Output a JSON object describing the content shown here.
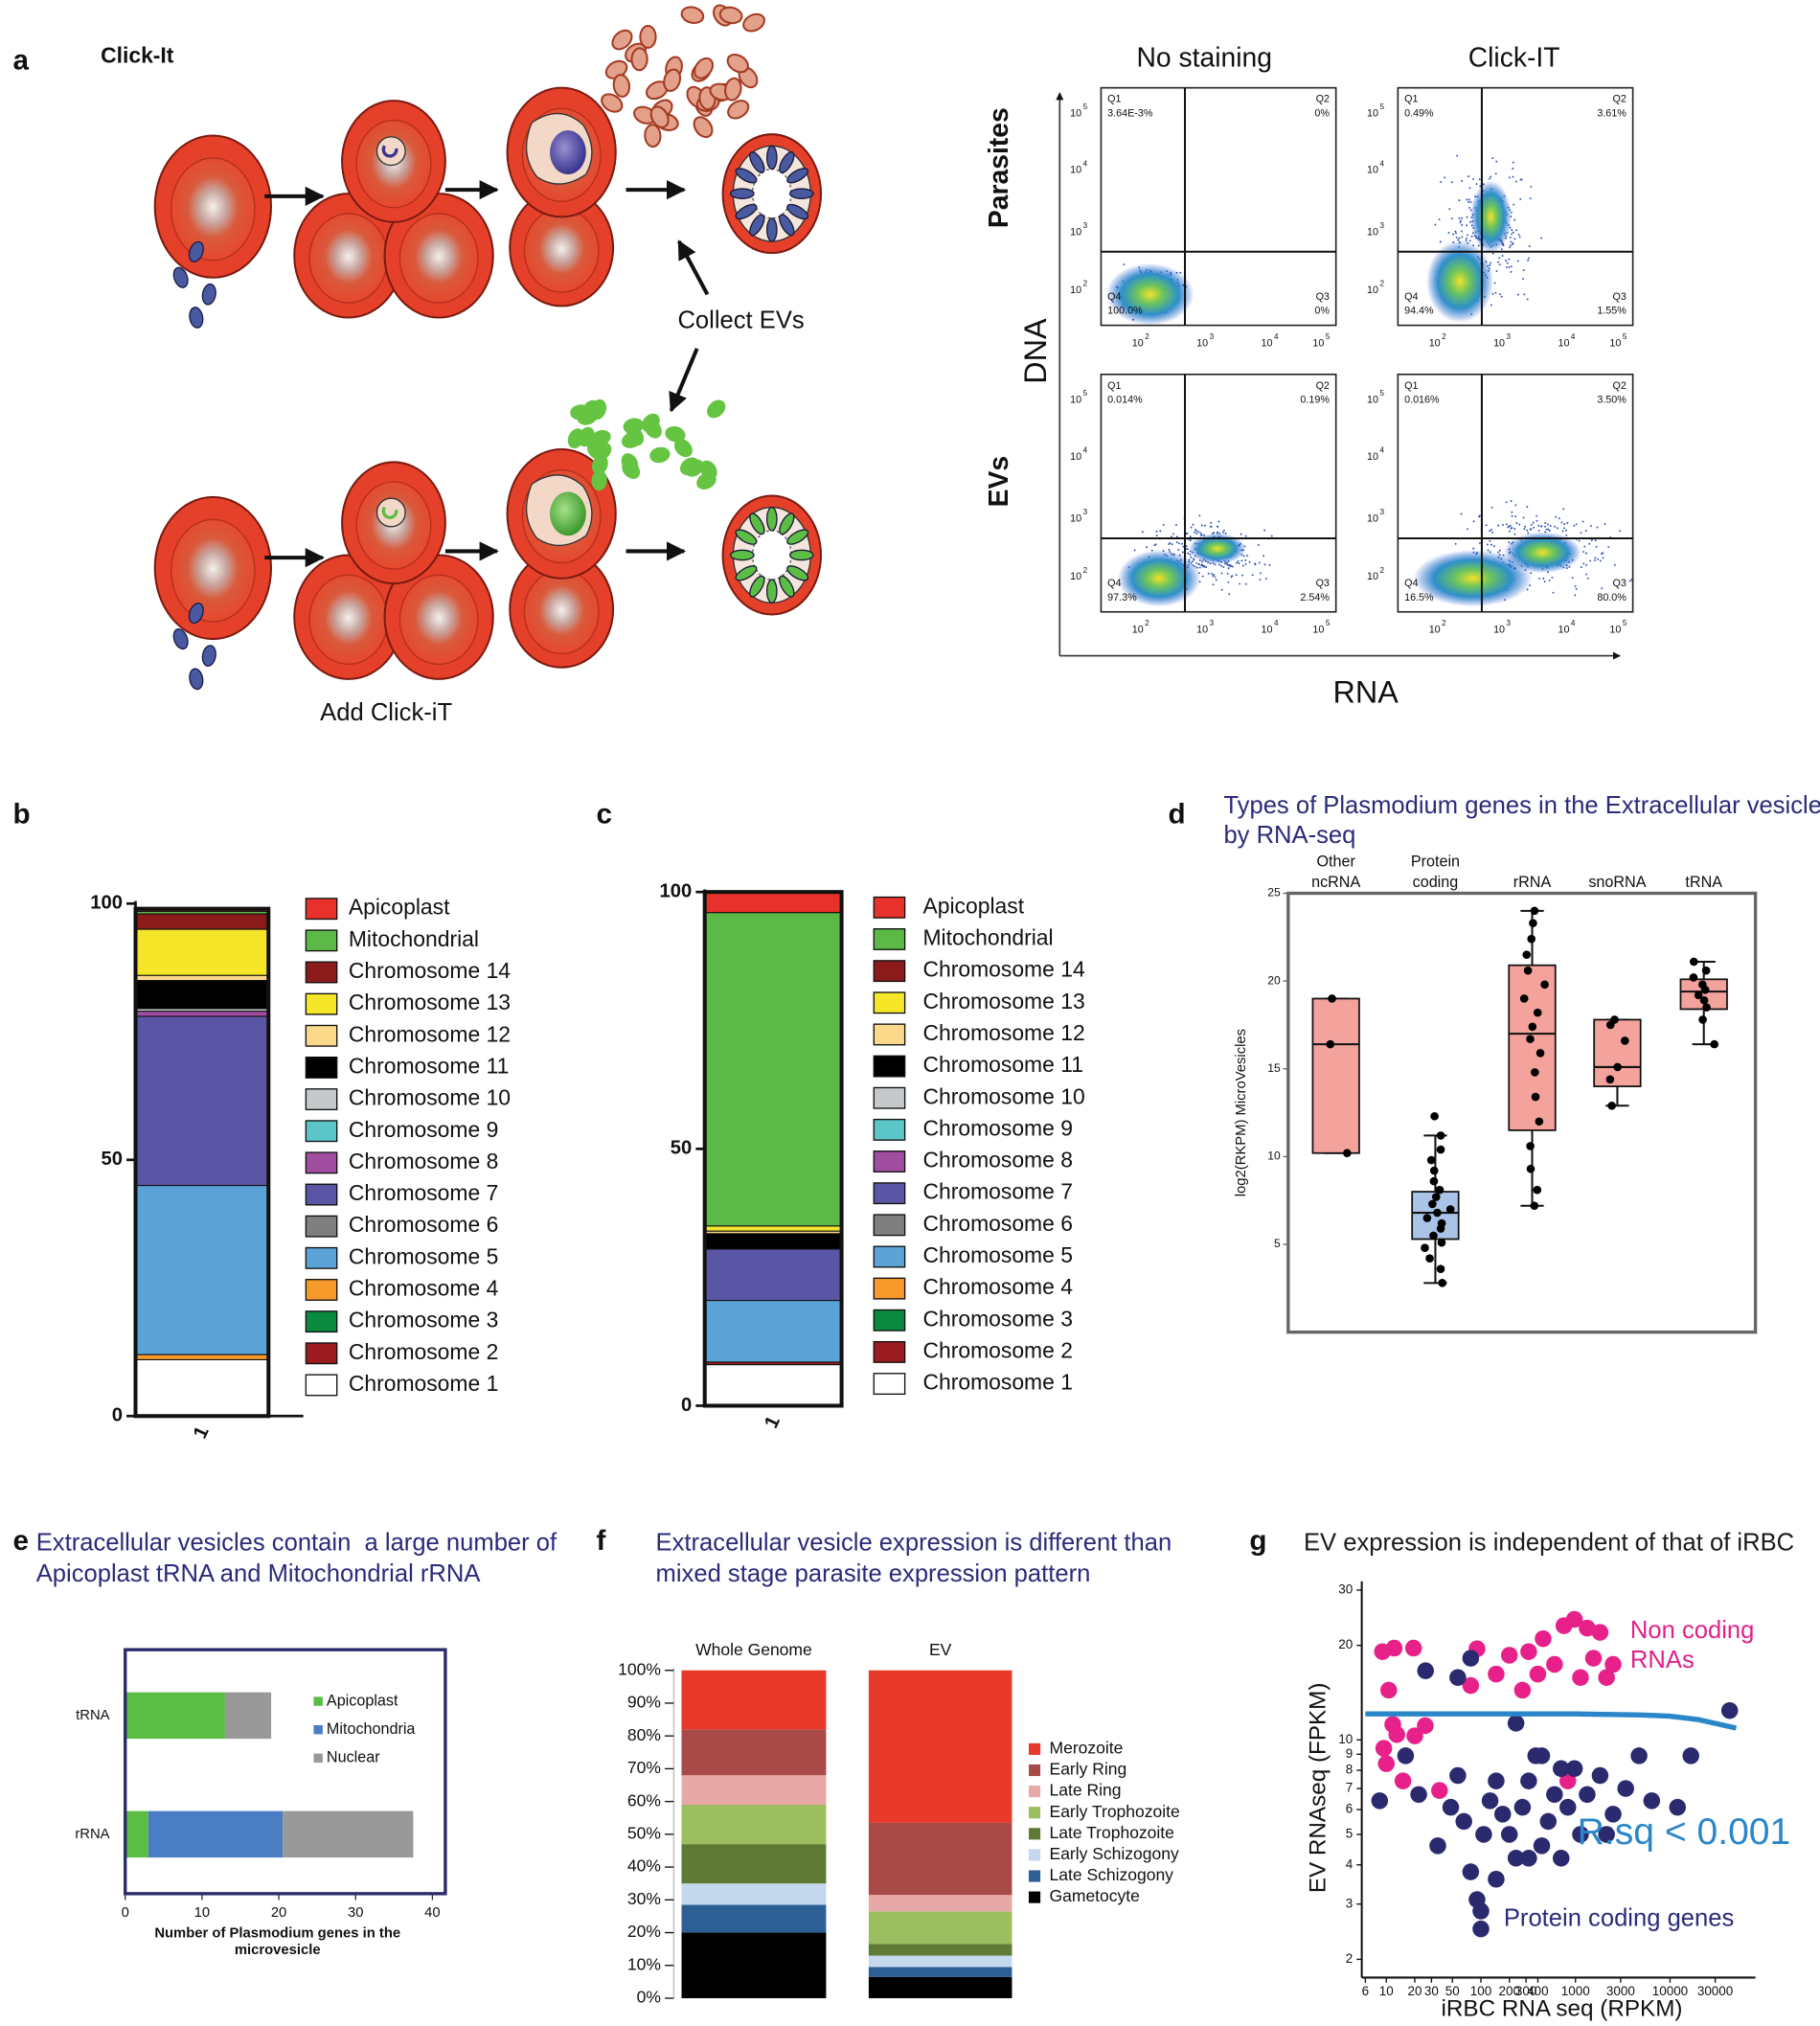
{
  "panel_a": {
    "label": "a",
    "title": "Click-It",
    "collect_label": "Collect EVs",
    "add_label": "Add Click-iT",
    "columns": [
      "No staining",
      "Click-IT"
    ],
    "rows": [
      "Parasites",
      "EVs"
    ],
    "y_axis": "DNA",
    "x_axis": "RNA",
    "tick_base": "10",
    "tick_exponents": [
      "2",
      "3",
      "4",
      "5"
    ],
    "plots": [
      {
        "quadrants": [
          {
            "name": "Q1",
            "value": "3.64E-3%"
          },
          {
            "name": "Q2",
            "value": "0%"
          },
          {
            "name": "Q3",
            "value": "0%"
          },
          {
            "name": "Q4",
            "value": "100.0%"
          }
        ]
      },
      {
        "quadrants": [
          {
            "name": "Q1",
            "value": "0.49%"
          },
          {
            "name": "Q2",
            "value": "3.61%"
          },
          {
            "name": "Q3",
            "value": "1.55%"
          },
          {
            "name": "Q4",
            "value": "94.4%"
          }
        ]
      },
      {
        "quadrants": [
          {
            "name": "Q1",
            "value": "0.014%"
          },
          {
            "name": "Q2",
            "value": "0.19%"
          },
          {
            "name": "Q3",
            "value": "2.54%"
          },
          {
            "name": "Q4",
            "value": "97.3%"
          }
        ]
      },
      {
        "quadrants": [
          {
            "name": "Q1",
            "value": "0.016%"
          },
          {
            "name": "Q2",
            "value": "3.50%"
          },
          {
            "name": "Q3",
            "value": "80.0%"
          },
          {
            "name": "Q4",
            "value": "16.5%"
          }
        ]
      }
    ]
  },
  "chart_data": [
    {
      "panel": "b",
      "type": "bar",
      "stacked": true,
      "outline": true,
      "categories": [
        "1"
      ],
      "ylim": [
        0,
        100
      ],
      "yticks": [
        0,
        50,
        100
      ],
      "series": [
        {
          "name": "Apicoplast",
          "color": "#e8312a",
          "values": [
            0.5
          ]
        },
        {
          "name": "Mitochondrial",
          "color": "#5cb947",
          "values": [
            0.5
          ]
        },
        {
          "name": "Chromosome 14",
          "color": "#8b1a1a",
          "values": [
            3
          ]
        },
        {
          "name": "Chromosome 13",
          "color": "#f5e62a",
          "values": [
            9
          ]
        },
        {
          "name": "Chromosome 12",
          "color": "#fcd98a",
          "values": [
            1
          ]
        },
        {
          "name": "Chromosome 11",
          "color": "#000000",
          "values": [
            5.5
          ]
        },
        {
          "name": "Chromosome 10",
          "color": "#c5c9cb",
          "values": [
            0.5
          ]
        },
        {
          "name": "Chromosome 9",
          "color": "#5cc5c8",
          "values": [
            0
          ]
        },
        {
          "name": "Chromosome 8",
          "color": "#a24ea0",
          "values": [
            1
          ]
        },
        {
          "name": "Chromosome 7",
          "color": "#5b55a6",
          "values": [
            33
          ]
        },
        {
          "name": "Chromosome 6",
          "color": "#7f7f7f",
          "values": [
            0
          ]
        },
        {
          "name": "Chromosome 5",
          "color": "#5ba3d6",
          "values": [
            33
          ]
        },
        {
          "name": "Chromosome 4",
          "color": "#f59a2b",
          "values": [
            1
          ]
        },
        {
          "name": "Chromosome 3",
          "color": "#0a8a3e",
          "values": [
            0
          ]
        },
        {
          "name": "Chromosome 2",
          "color": "#9b1b1f",
          "values": [
            0
          ]
        },
        {
          "name": "Chromosome 1",
          "color": "#ffffff",
          "values": [
            11
          ]
        }
      ]
    },
    {
      "panel": "c",
      "type": "bar",
      "stacked": true,
      "outline": true,
      "categories": [
        "1"
      ],
      "ylim": [
        0,
        100
      ],
      "yticks": [
        0,
        50,
        100
      ],
      "series": [
        {
          "name": "Apicoplast",
          "color": "#e8312a",
          "values": [
            4
          ]
        },
        {
          "name": "Mitochondrial",
          "color": "#5cb947",
          "values": [
            61
          ]
        },
        {
          "name": "Chromosome 14",
          "color": "#8b1a1a",
          "values": [
            0
          ]
        },
        {
          "name": "Chromosome 13",
          "color": "#f5e62a",
          "values": [
            1
          ]
        },
        {
          "name": "Chromosome 12",
          "color": "#fcd98a",
          "values": [
            0.5
          ]
        },
        {
          "name": "Chromosome 11",
          "color": "#000000",
          "values": [
            3
          ]
        },
        {
          "name": "Chromosome 10",
          "color": "#c5c9cb",
          "values": [
            0
          ]
        },
        {
          "name": "Chromosome 9",
          "color": "#5cc5c8",
          "values": [
            0
          ]
        },
        {
          "name": "Chromosome 8",
          "color": "#a24ea0",
          "values": [
            0
          ]
        },
        {
          "name": "Chromosome 7",
          "color": "#5b55a6",
          "values": [
            10
          ]
        },
        {
          "name": "Chromosome 6",
          "color": "#7f7f7f",
          "values": [
            0
          ]
        },
        {
          "name": "Chromosome 5",
          "color": "#5ba3d6",
          "values": [
            12
          ]
        },
        {
          "name": "Chromosome 4",
          "color": "#f59a2b",
          "values": [
            0
          ]
        },
        {
          "name": "Chromosome 3",
          "color": "#0a8a3e",
          "values": [
            0
          ]
        },
        {
          "name": "Chromosome 2",
          "color": "#9b1b1f",
          "values": [
            0.5
          ]
        },
        {
          "name": "Chromosome 1",
          "color": "#ffffff",
          "values": [
            8
          ]
        }
      ]
    },
    {
      "panel": "d",
      "type": "box",
      "title": [
        "Types of Plasmodium genes in the Extracellular vesicles",
        "by RNA-seq"
      ],
      "ylabel": "log2(RKPM) MicroVesicles",
      "categories": [
        [
          "Other",
          "ncRNA"
        ],
        [
          "Protein",
          "coding"
        ],
        [
          "rRNA"
        ],
        [
          "snoRNA"
        ],
        [
          "tRNA"
        ]
      ],
      "colors": [
        "#f4a29c",
        "#aac4e8",
        "#f4a29c",
        "#f4a29c",
        "#f4a29c"
      ],
      "ylim": [
        0,
        25
      ],
      "yticks": [
        5,
        10,
        15,
        20,
        25
      ],
      "boxes": [
        {
          "min": 10.2,
          "q1": 10.2,
          "median": 16.4,
          "q3": 19,
          "max": 19,
          "points": [
            10.2,
            16.4,
            19
          ]
        },
        {
          "min": 2.8,
          "q1": 5.3,
          "median": 6.8,
          "q3": 8,
          "max": 11.2,
          "points": [
            2.8,
            3.6,
            4.2,
            4.8,
            5.1,
            5.5,
            5.9,
            6.2,
            6.5,
            6.8,
            7.0,
            7.3,
            7.7,
            8.1,
            8.6,
            9.2,
            9.8,
            10.4,
            11.2,
            12.3
          ]
        },
        {
          "min": 7.2,
          "q1": 11.5,
          "median": 17,
          "q3": 20.9,
          "max": 24,
          "points": [
            7.2,
            8.1,
            9.3,
            10.6,
            12.0,
            13.4,
            14.8,
            15.9,
            16.7,
            17.4,
            18.2,
            19.0,
            19.8,
            20.6,
            21.5,
            22.4,
            23.3,
            24
          ]
        },
        {
          "min": 12.9,
          "q1": 14,
          "median": 15.1,
          "q3": 17.8,
          "max": 17.8,
          "points": [
            12.9,
            14.4,
            15.1,
            16.6,
            17.5,
            17.8
          ]
        },
        {
          "min": 16.4,
          "q1": 18.4,
          "median": 19.4,
          "q3": 20.1,
          "max": 21.1,
          "points": [
            16.4,
            17.8,
            18.5,
            18.9,
            19.2,
            19.5,
            19.8,
            20.2,
            20.6,
            21.1
          ]
        }
      ]
    },
    {
      "panel": "e",
      "type": "bar",
      "orientation": "horizontal",
      "stacked": true,
      "title": [
        "Extracellular vesicles contain  a large number of",
        "Apicoplast tRNA and Mitochondrial rRNA"
      ],
      "xlabel": [
        "Number of Plasmodium genes in the",
        "microvesicle"
      ],
      "categories": [
        "tRNA",
        "rRNA"
      ],
      "xlim": [
        0,
        40
      ],
      "xticks": [
        0,
        10,
        20,
        30,
        40
      ],
      "series": [
        {
          "name": "Apicoplast",
          "color": "#5cbd45",
          "values": [
            13,
            3
          ]
        },
        {
          "name": "Mitochondria",
          "color": "#4a7dc4",
          "values": [
            0,
            17.5
          ]
        },
        {
          "name": "Nuclear",
          "color": "#999999",
          "values": [
            6,
            17
          ]
        }
      ]
    },
    {
      "panel": "f",
      "type": "bar",
      "stacked": true,
      "title": [
        "Extracellular vesicle expression is different than",
        "mixed stage parasite expression pattern"
      ],
      "categories": [
        "Whole Genome",
        "EV"
      ],
      "ylim": [
        0,
        100
      ],
      "yticks": [
        {
          "value": 0,
          "label": "0%"
        },
        {
          "value": 10,
          "label": "10%"
        },
        {
          "value": 20,
          "label": "20%"
        },
        {
          "value": 30,
          "label": "30%"
        },
        {
          "value": 40,
          "label": "40%"
        },
        {
          "value": 50,
          "label": "50%"
        },
        {
          "value": 60,
          "label": "60%"
        },
        {
          "value": 70,
          "label": "70%"
        },
        {
          "value": 80,
          "label": "80%"
        },
        {
          "value": 90,
          "label": "90%"
        },
        {
          "value": 100,
          "label": "100%"
        }
      ],
      "series": [
        {
          "name": "Merozoite",
          "color": "#e8392a",
          "values": [
            18,
            46.5
          ]
        },
        {
          "name": "Early Ring",
          "color": "#a84a48",
          "values": [
            14,
            22
          ]
        },
        {
          "name": "Late Ring",
          "color": "#e8a8a8",
          "values": [
            9,
            5
          ]
        },
        {
          "name": "Early Trophozoite",
          "color": "#9cbd60",
          "values": [
            12,
            10
          ]
        },
        {
          "name": "Late Trophozoite",
          "color": "#5e7a34",
          "values": [
            12,
            3.5
          ]
        },
        {
          "name": "Early Schizogony",
          "color": "#c5d8ee",
          "values": [
            6.5,
            3.5
          ]
        },
        {
          "name": "Late Schizogony",
          "color": "#2e5f94",
          "values": [
            8.5,
            3
          ]
        },
        {
          "name": "Gametocyte",
          "color": "#000000",
          "values": [
            20,
            6.5
          ]
        }
      ]
    },
    {
      "panel": "g",
      "type": "scatter",
      "title": "EV expression is independent of that of iRBC",
      "xlabel": "iRBC RNA seq (RPKM)",
      "ylabel": "EV RNAseq (FPKM)",
      "xscale": "log",
      "yscale": "log",
      "xlim": [
        5.5,
        80000
      ],
      "ylim": [
        1.75,
        32
      ],
      "xticks": [
        6,
        10,
        20,
        30,
        50,
        100,
        200,
        300,
        400,
        1000,
        3000,
        10000,
        30000
      ],
      "yticks": [
        2,
        3,
        4,
        5,
        6,
        7,
        8,
        9,
        10,
        20,
        30
      ],
      "series": [
        {
          "color": "#e8208a",
          "x": [
            9.1,
            12.1,
            19.4,
            10.6,
            11.7,
            10,
            9.4,
            12.9,
            20,
            25.8,
            15,
            36.5,
            78,
            91,
            200,
            320,
            400,
            455,
            755,
            975,
            1330,
            1820,
            600,
            1130,
            2500,
            2130,
            830,
            275,
            145,
            1550
          ],
          "values": [
            19.1,
            19.6,
            19.6,
            14.4,
            11.2,
            8.4,
            9.4,
            10.4,
            10.3,
            11.1,
            7.4,
            6.9,
            14.9,
            19.5,
            18.6,
            19.1,
            16.2,
            21,
            23.1,
            24.2,
            22.7,
            22,
            17.4,
            15.8,
            17.4,
            15.8,
            7.4,
            14.4,
            16.2,
            18.2
          ]
        },
        {
          "color": "#2b2a6e",
          "x": [
            8.5,
            16,
            22,
            35,
            48,
            57,
            66,
            78,
            91,
            107,
            125,
            145,
            170,
            200,
            235,
            275,
            320,
            380,
            440,
            515,
            600,
            705,
            830,
            975,
            1130,
            1330,
            1820,
            2500,
            3400,
            4700,
            6400,
            12000,
            16600,
            42700,
            57,
            78,
            235,
            100,
            100,
            26,
            145,
            320,
            440,
            705,
            2130
          ],
          "values": [
            6.4,
            8.9,
            6.7,
            4.6,
            6.1,
            7.7,
            5.5,
            3.8,
            3.1,
            5.0,
            6.4,
            7.4,
            5.8,
            5.0,
            4.2,
            6.1,
            7.4,
            8.9,
            4.6,
            5.5,
            6.7,
            4.2,
            6.1,
            8.1,
            5.0,
            6.7,
            7.7,
            5.8,
            7.0,
            8.9,
            6.4,
            6.1,
            8.9,
            12.4,
            15.8,
            18.2,
            11.3,
            2.85,
            2.5,
            16.6,
            3.6,
            4.2,
            8.9,
            8.1,
            5.0
          ]
        }
      ],
      "fit": {
        "color": "#2a86c8",
        "x": [
          6,
          100,
          1000,
          5000,
          10000,
          20000,
          50000
        ],
        "values": [
          12.1,
          12.1,
          12.1,
          12,
          11.9,
          11.6,
          10.9
        ]
      },
      "annotations": [
        {
          "text": [
            "Non coding",
            "RNAs"
          ],
          "color": "#e0218a"
        },
        {
          "text": [
            "R.sq < 0.001"
          ],
          "color": "#2a86c8"
        },
        {
          "text": [
            "Protein coding genes"
          ],
          "color": "#2b2a7a"
        }
      ]
    }
  ]
}
